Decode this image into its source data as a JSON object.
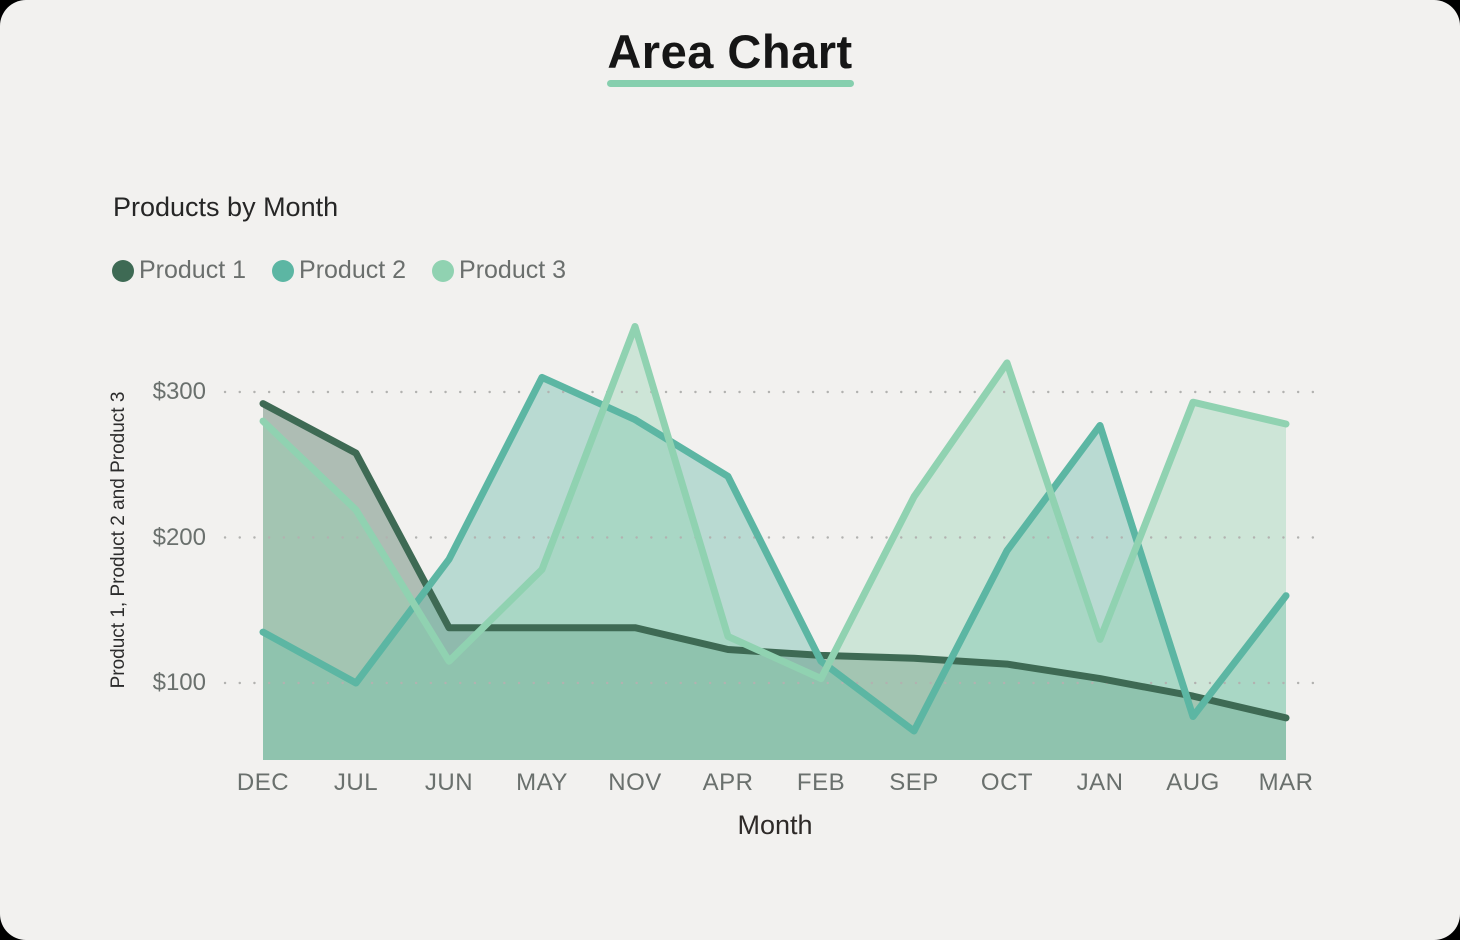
{
  "title": {
    "text": "Area Chart",
    "underline_color": "#86cfae"
  },
  "card": {
    "background": "#f2f1ef",
    "corner_color": "#000000"
  },
  "chart_data": {
    "type": "area",
    "title": "Products by Month",
    "categories": [
      "DEC",
      "JUL",
      "JUN",
      "MAY",
      "NOV",
      "APR",
      "FEB",
      "SEP",
      "OCT",
      "JAN",
      "AUG",
      "MAR"
    ],
    "series": [
      {
        "name": "Product 1",
        "color": "#3e6a54",
        "values": [
          292,
          258,
          138,
          138,
          138,
          123,
          119,
          117,
          113,
          103,
          91,
          76
        ]
      },
      {
        "name": "Product 2",
        "color": "#5cb6a3",
        "values": [
          135,
          100,
          185,
          310,
          281,
          242,
          115,
          67,
          191,
          277,
          77,
          160
        ]
      },
      {
        "name": "Product 3",
        "color": "#90d2b1",
        "values": [
          280,
          219,
          115,
          178,
          345,
          132,
          103,
          228,
          320,
          130,
          293,
          278
        ]
      }
    ],
    "xlabel": "Month",
    "ylabel": "Product 1, Product 2 and Product 3",
    "y_tick_values": [
      300,
      200,
      100
    ],
    "y_tick_labels": [
      "$300",
      "$200",
      "$100"
    ],
    "ylim": [
      47,
      348
    ],
    "currency_prefix": "$",
    "grid": "dotted-horizontal",
    "grid_color": "#b2b2b0",
    "legend_position": "top-left",
    "fill_opacity": 0.38,
    "line_width": 7
  }
}
